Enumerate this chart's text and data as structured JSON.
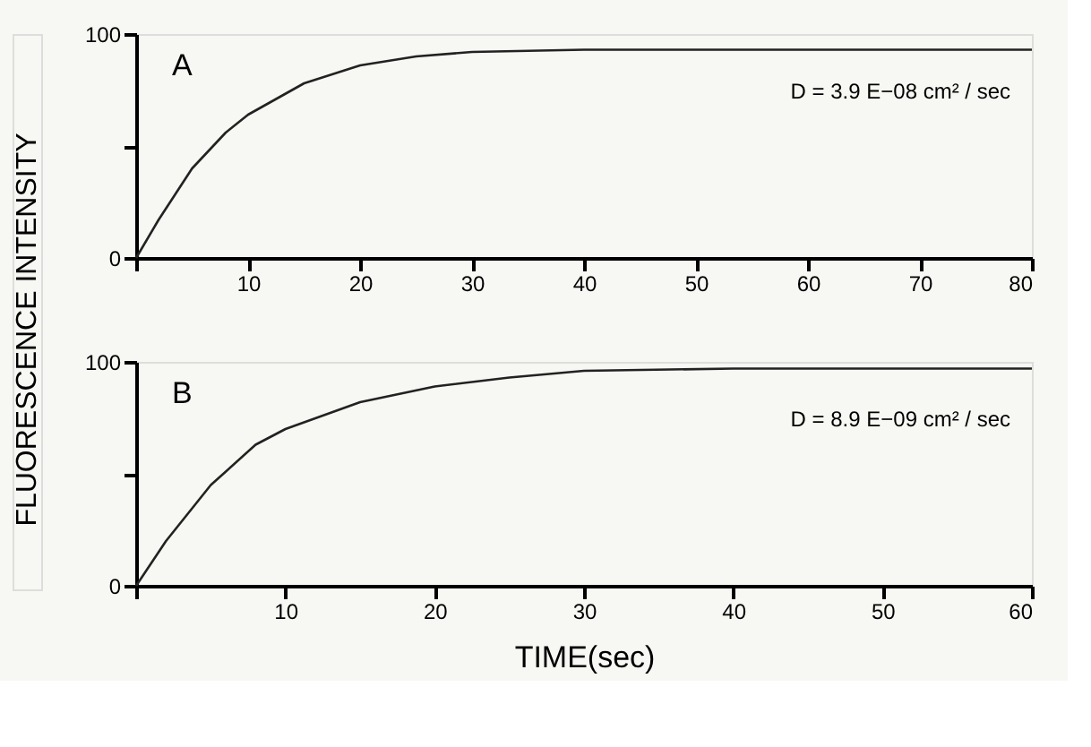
{
  "chart_data": [
    {
      "type": "line",
      "ylabel": "FLUORESCENCE INTENSITY",
      "annotations": [
        "A",
        "D = 3.9 E−08 cm² / sec"
      ],
      "x": [
        0,
        2,
        5,
        8,
        10,
        15,
        20,
        25,
        30,
        40,
        60,
        80
      ],
      "series": [
        {
          "color": "#222222",
          "values": [
            0,
            17,
            40,
            56,
            64,
            78,
            86,
            90,
            92,
            93,
            93,
            93
          ]
        }
      ],
      "xlim": [
        0,
        80
      ],
      "xticks": [
        {
          "value": 0,
          "label": null
        },
        10,
        20,
        30,
        40,
        50,
        60,
        70,
        80
      ],
      "ylim": [
        0,
        100
      ],
      "yticks": [
        0,
        {
          "value": 50,
          "label": null
        },
        100
      ],
      "grid": false,
      "marker": "none",
      "line_style": "solid"
    },
    {
      "type": "line",
      "xlabel": "TIME(sec)",
      "annotations": [
        "B",
        "D = 8.9 E−09 cm² / sec"
      ],
      "x": [
        0,
        2,
        5,
        8,
        10,
        15,
        20,
        25,
        30,
        40,
        60
      ],
      "series": [
        {
          "color": "#222222",
          "values": [
            0,
            20,
            45,
            63,
            70,
            82,
            89,
            93,
            96,
            97,
            97
          ]
        }
      ],
      "xlim": [
        0,
        60
      ],
      "xticks": [
        {
          "value": 0,
          "label": null
        },
        10,
        20,
        30,
        40,
        50,
        60
      ],
      "ylim": [
        0,
        100
      ],
      "yticks": [
        0,
        {
          "value": 50,
          "label": null
        },
        100
      ],
      "grid": false,
      "marker": "none",
      "line_style": "solid"
    }
  ]
}
